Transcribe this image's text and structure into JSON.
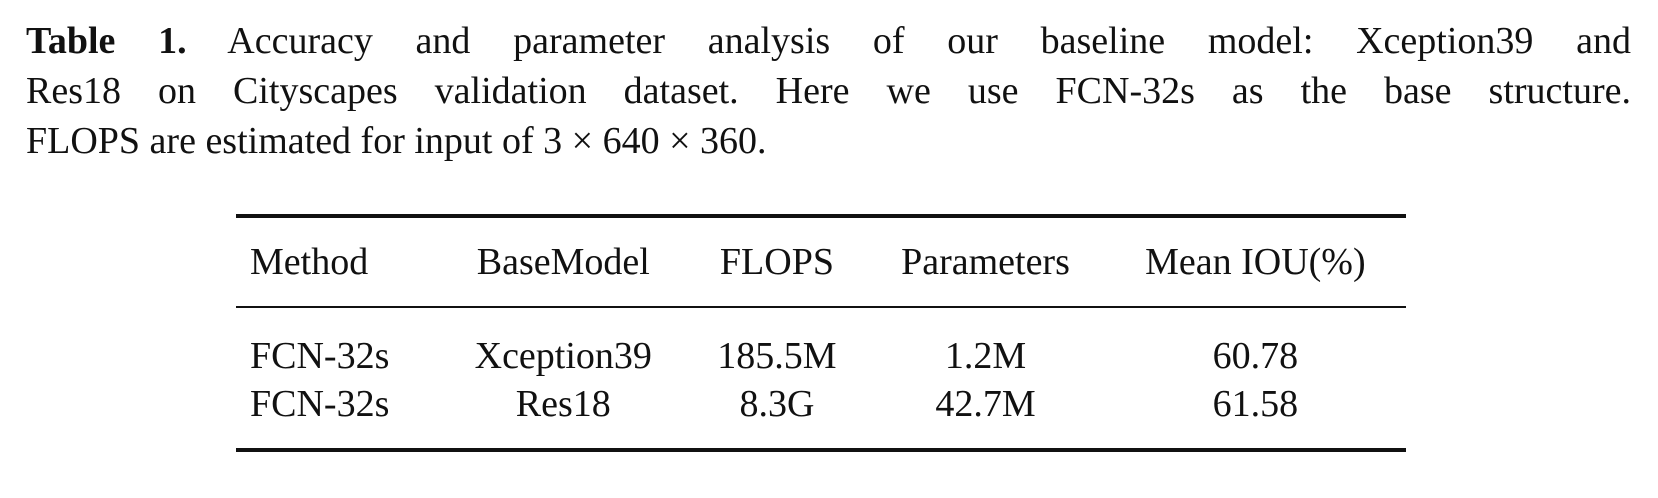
{
  "caption": {
    "label": "Table 1.",
    "line1": "Accuracy and parameter analysis of our baseline model: Xception39 and",
    "line2": "Res18 on Cityscapes validation dataset. Here we use FCN-32s as the base structure.",
    "line3": "FLOPS are estimated for input of 3 × 640 × 360."
  },
  "table": {
    "headers": [
      "Method",
      "BaseModel",
      "FLOPS",
      "Parameters",
      "Mean IOU(%)"
    ],
    "rows": [
      [
        "FCN-32s",
        "Xception39",
        "185.5M",
        "1.2M",
        "60.78"
      ],
      [
        "FCN-32s",
        "Res18",
        "8.3G",
        "42.7M",
        "61.58"
      ]
    ]
  }
}
